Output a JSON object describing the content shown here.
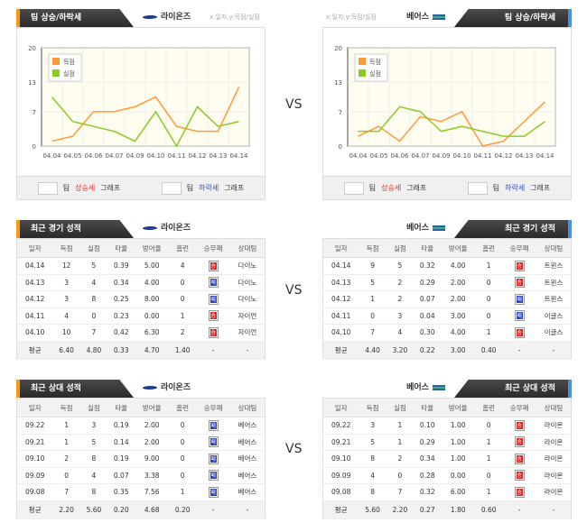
{
  "vs_label": "VS",
  "trend_title": "팀 상승/하락세",
  "axis_note": "x:일자,y:득점/실점",
  "legend_button_prefix": "팀",
  "legend_up": "상승세",
  "legend_down": "하락세",
  "legend_suffix": "그래프",
  "recent_title": "최근 경기 성적",
  "h2h_title": "최근 상대 성적",
  "columns": [
    "일자",
    "득점",
    "실점",
    "타율",
    "방어율",
    "홈런",
    "승무패",
    "상대팀"
  ],
  "avg_label": "평균",
  "teams": {
    "left": "라이온즈",
    "right": "베어스"
  },
  "colors": {
    "scored": "#ff9933",
    "allowed": "#88cc22",
    "win": "#e02424",
    "loss": "#2a44c8"
  },
  "chart_data": [
    {
      "type": "line",
      "team": "라이온즈",
      "categories": [
        "04.04",
        "04.05",
        "04.06",
        "04.07",
        "04.09",
        "04.10",
        "04.11",
        "04.12",
        "04.13",
        "04.14"
      ],
      "yticks": [
        0,
        7,
        13,
        20
      ],
      "ylim": [
        0,
        20
      ],
      "grid": true,
      "legend_placement": "top-left",
      "series": [
        {
          "name": "득점",
          "values": [
            1,
            2,
            7,
            7,
            8,
            10,
            4,
            3,
            3,
            12
          ]
        },
        {
          "name": "실점",
          "values": [
            10,
            5,
            4,
            3,
            1,
            7,
            0,
            8,
            4,
            5
          ]
        }
      ]
    },
    {
      "type": "line",
      "team": "베어스",
      "categories": [
        "04.04",
        "04.05",
        "04.06",
        "04.07",
        "04.09",
        "04.10",
        "04.11",
        "04.12",
        "04.13",
        "04.14"
      ],
      "yticks": [
        0,
        7,
        13,
        20
      ],
      "ylim": [
        0,
        20
      ],
      "grid": true,
      "legend_placement": "top-left",
      "series": [
        {
          "name": "득점",
          "values": [
            2,
            4,
            1,
            6,
            5,
            7,
            0,
            1,
            5,
            9
          ]
        },
        {
          "name": "실점",
          "values": [
            3,
            3,
            8,
            7,
            3,
            4,
            3,
            2,
            2,
            5
          ]
        }
      ]
    }
  ],
  "recent": {
    "left": {
      "rows": [
        [
          "04.14",
          "12",
          "5",
          "0.39",
          "5.00",
          "4",
          "승",
          "다이노"
        ],
        [
          "04.13",
          "3",
          "4",
          "0.34",
          "4.00",
          "0",
          "패",
          "다이노"
        ],
        [
          "04.12",
          "3",
          "8",
          "0.25",
          "8.00",
          "0",
          "패",
          "다이노"
        ],
        [
          "04.11",
          "4",
          "0",
          "0.23",
          "0.00",
          "1",
          "승",
          "자이언"
        ],
        [
          "04.10",
          "10",
          "7",
          "0.42",
          "6.30",
          "2",
          "승",
          "자이언"
        ]
      ],
      "avg": [
        "6.40",
        "4.80",
        "0.33",
        "4.70",
        "1.40",
        "-",
        "-"
      ]
    },
    "right": {
      "rows": [
        [
          "04.14",
          "9",
          "5",
          "0.32",
          "4.00",
          "1",
          "승",
          "트윈스"
        ],
        [
          "04.13",
          "5",
          "2",
          "0.29",
          "2.00",
          "0",
          "승",
          "트윈스"
        ],
        [
          "04.12",
          "1",
          "2",
          "0.07",
          "2.00",
          "0",
          "패",
          "트윈스"
        ],
        [
          "04.11",
          "0",
          "3",
          "0.04",
          "3.00",
          "0",
          "패",
          "이글스"
        ],
        [
          "04.10",
          "7",
          "4",
          "0.30",
          "4.00",
          "1",
          "승",
          "이글스"
        ]
      ],
      "avg": [
        "4.40",
        "3.20",
        "0.22",
        "3.00",
        "0.40",
        "-",
        "-"
      ]
    }
  },
  "h2h": {
    "left": {
      "rows": [
        [
          "09.22",
          "1",
          "3",
          "0.19",
          "2.00",
          "0",
          "패",
          "베어스"
        ],
        [
          "09.21",
          "1",
          "5",
          "0.14",
          "2.00",
          "0",
          "패",
          "베어스"
        ],
        [
          "09.10",
          "2",
          "8",
          "0.19",
          "9.00",
          "0",
          "패",
          "베어스"
        ],
        [
          "09.09",
          "0",
          "4",
          "0.07",
          "3.38",
          "0",
          "패",
          "베어스"
        ],
        [
          "09.08",
          "7",
          "8",
          "0.35",
          "7.56",
          "1",
          "패",
          "베어스"
        ]
      ],
      "avg": [
        "2.20",
        "5.60",
        "0.20",
        "4.68",
        "0.20",
        "-",
        "-"
      ]
    },
    "right": {
      "rows": [
        [
          "09.22",
          "3",
          "1",
          "0.10",
          "1.00",
          "0",
          "승",
          "라이온"
        ],
        [
          "09.21",
          "5",
          "1",
          "0.29",
          "1.00",
          "1",
          "승",
          "라이온"
        ],
        [
          "09.10",
          "8",
          "2",
          "0.34",
          "1.00",
          "1",
          "승",
          "라이온"
        ],
        [
          "09.09",
          "4",
          "0",
          "0.28",
          "0.00",
          "0",
          "승",
          "라이온"
        ],
        [
          "09.08",
          "8",
          "7",
          "0.32",
          "6.00",
          "1",
          "승",
          "라이온"
        ]
      ],
      "avg": [
        "5.60",
        "2.20",
        "0.27",
        "1.80",
        "0.60",
        "-",
        "-"
      ]
    }
  }
}
